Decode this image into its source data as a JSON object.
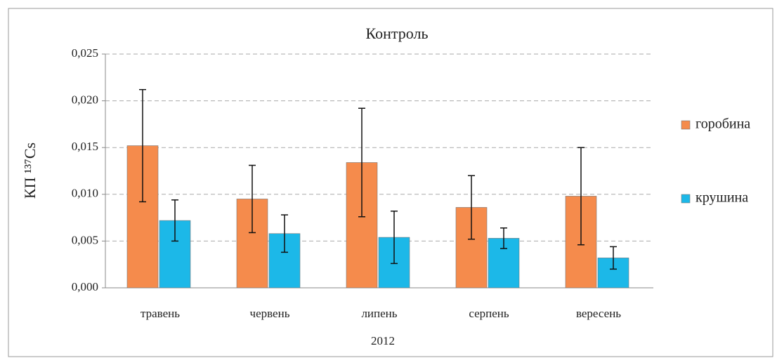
{
  "chart_data": {
    "type": "bar",
    "title": "Контроль",
    "xlabel": "2012",
    "ylabel": "КП ¹³⁷Cs",
    "categories": [
      "травень",
      "червень",
      "липень",
      "серпень",
      "вересень"
    ],
    "series": [
      {
        "name": "горобина",
        "color": "#f58b4c",
        "values": [
          0.0152,
          0.0095,
          0.0134,
          0.0086,
          0.0098
        ],
        "errors": [
          0.006,
          0.0036,
          0.0058,
          0.0034,
          0.0052
        ]
      },
      {
        "name": "крушина",
        "color": "#1cb8e8",
        "values": [
          0.0072,
          0.0058,
          0.0054,
          0.0053,
          0.0032
        ],
        "errors": [
          0.0022,
          0.002,
          0.0028,
          0.0011,
          0.0012
        ]
      }
    ],
    "ylim": [
      0,
      0.025
    ],
    "yticks": [
      {
        "value": 0,
        "label": "0,000"
      },
      {
        "value": 0.005,
        "label": "0,005"
      },
      {
        "value": 0.01,
        "label": "0,010"
      },
      {
        "value": 0.015,
        "label": "0,015"
      },
      {
        "value": 0.02,
        "label": "0,020"
      },
      {
        "value": 0.025,
        "label": "0,025"
      }
    ],
    "grid": true,
    "legend": "right"
  }
}
